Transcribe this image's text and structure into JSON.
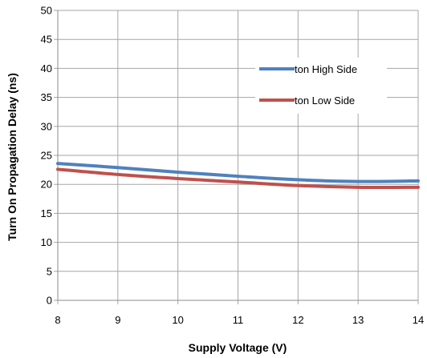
{
  "chart_data": {
    "type": "line",
    "xlabel": "Supply Voltage (V)",
    "ylabel": "Turn On Propagation Delay (ns)",
    "xlim": [
      8,
      14
    ],
    "ylim": [
      0,
      50
    ],
    "x_ticks": [
      8,
      9,
      10,
      11,
      12,
      13,
      14
    ],
    "y_ticks": [
      0,
      5,
      10,
      15,
      20,
      25,
      30,
      35,
      40,
      45,
      50
    ],
    "grid": true,
    "legend_position": "top-right",
    "series": [
      {
        "name": "ton High Side",
        "color": "#4f81bd",
        "x": [
          8,
          9,
          10,
          11,
          12,
          13,
          14
        ],
        "y": [
          23.6,
          22.9,
          22.1,
          21.4,
          20.8,
          20.5,
          20.6
        ]
      },
      {
        "name": "ton Low Side",
        "color": "#c0504d",
        "x": [
          8,
          9,
          10,
          11,
          12,
          13,
          14
        ],
        "y": [
          22.6,
          21.7,
          21.0,
          20.4,
          19.8,
          19.5,
          19.5
        ]
      }
    ]
  }
}
